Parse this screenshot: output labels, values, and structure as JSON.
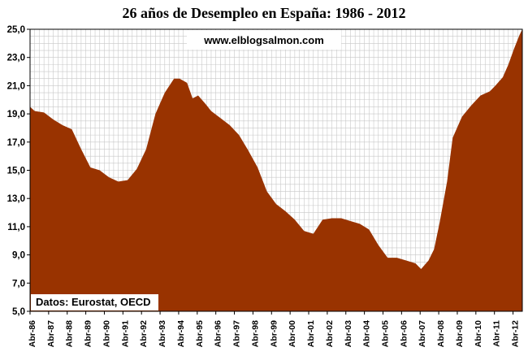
{
  "chart_data": {
    "type": "area",
    "title": "26 años de Desempleo en España: 1986 - 2012",
    "annotations": {
      "website": "www.elblogsalmon.com",
      "source": "Datos: Eurostat, OECD"
    },
    "ylim": [
      5.0,
      25.0
    ],
    "yticks": [
      "5,0",
      "7,0",
      "9,0",
      "11,0",
      "13,0",
      "15,0",
      "17,0",
      "19,0",
      "21,0",
      "23,0",
      "25,0"
    ],
    "xlim": [
      1986.25,
      2012.75
    ],
    "xticks": [
      {
        "label": "Abr-86",
        "x": 1986.25
      },
      {
        "label": "Abr-87",
        "x": 1987.25
      },
      {
        "label": "Abr-88",
        "x": 1988.25
      },
      {
        "label": "Abr-89",
        "x": 1989.25
      },
      {
        "label": "Abr-90",
        "x": 1990.25
      },
      {
        "label": "Abr-91",
        "x": 1991.25
      },
      {
        "label": "Abr-92",
        "x": 1992.25
      },
      {
        "label": "Abr-93",
        "x": 1993.25
      },
      {
        "label": "Abr-94",
        "x": 1994.25
      },
      {
        "label": "Abr-95",
        "x": 1995.25
      },
      {
        "label": "Abr-96",
        "x": 1996.25
      },
      {
        "label": "Abr-97",
        "x": 1997.25
      },
      {
        "label": "Abr-98",
        "x": 1998.25
      },
      {
        "label": "Abr-99",
        "x": 1999.25
      },
      {
        "label": "Abr-00",
        "x": 2000.25
      },
      {
        "label": "Abr-01",
        "x": 2001.25
      },
      {
        "label": "Abr-02",
        "x": 2002.25
      },
      {
        "label": "Abr-03",
        "x": 2003.25
      },
      {
        "label": "Abr-04",
        "x": 2004.25
      },
      {
        "label": "Abr-05",
        "x": 2005.25
      },
      {
        "label": "Abr-06",
        "x": 2006.25
      },
      {
        "label": "Abr-07",
        "x": 2007.25
      },
      {
        "label": "Abr-08",
        "x": 2008.25
      },
      {
        "label": "Abr-09",
        "x": 2009.25
      },
      {
        "label": "Abr-10",
        "x": 2010.25
      },
      {
        "label": "Abr-11",
        "x": 2011.25
      },
      {
        "label": "Abr-12",
        "x": 2012.25
      }
    ],
    "grid": true,
    "colors": {
      "fill": "#993300",
      "grid": "#c8c8c8",
      "axis": "#000000"
    },
    "series": [
      {
        "x": [
          1986.25,
          1986.5,
          1987.0,
          1987.5,
          1988.0,
          1988.5,
          1989.0,
          1989.5,
          1990.0,
          1990.5,
          1991.0,
          1991.5,
          1992.0,
          1992.5,
          1993.0,
          1993.5,
          1994.0,
          1994.3,
          1994.7,
          1995.0,
          1995.3,
          1995.7,
          1996.0,
          1996.5,
          1997.0,
          1997.5,
          1998.0,
          1998.5,
          1999.0,
          1999.5,
          2000.0,
          2000.5,
          2001.0,
          2001.5,
          2002.0,
          2002.5,
          2003.0,
          2003.5,
          2004.0,
          2004.5,
          2005.0,
          2005.5,
          2006.0,
          2006.5,
          2007.0,
          2007.3,
          2007.7,
          2008.0,
          2008.3,
          2008.7,
          2009.0,
          2009.5,
          2010.0,
          2010.5,
          2011.0,
          2011.3,
          2011.7,
          2012.0,
          2012.3,
          2012.6,
          2012.75
        ],
        "values": [
          19.5,
          19.2,
          19.1,
          18.6,
          18.2,
          17.9,
          16.5,
          15.2,
          15.0,
          14.5,
          14.2,
          14.3,
          15.1,
          16.5,
          19.0,
          20.5,
          21.5,
          21.5,
          21.2,
          20.1,
          20.3,
          19.7,
          19.2,
          18.7,
          18.2,
          17.5,
          16.4,
          15.2,
          13.5,
          12.6,
          12.1,
          11.5,
          10.7,
          10.5,
          11.5,
          11.6,
          11.6,
          11.4,
          11.2,
          10.8,
          9.7,
          8.8,
          8.8,
          8.6,
          8.4,
          8.0,
          8.6,
          9.4,
          11.3,
          14.2,
          17.3,
          18.8,
          19.6,
          20.3,
          20.6,
          21.0,
          21.6,
          22.5,
          23.6,
          24.6,
          25.0
        ]
      }
    ]
  }
}
